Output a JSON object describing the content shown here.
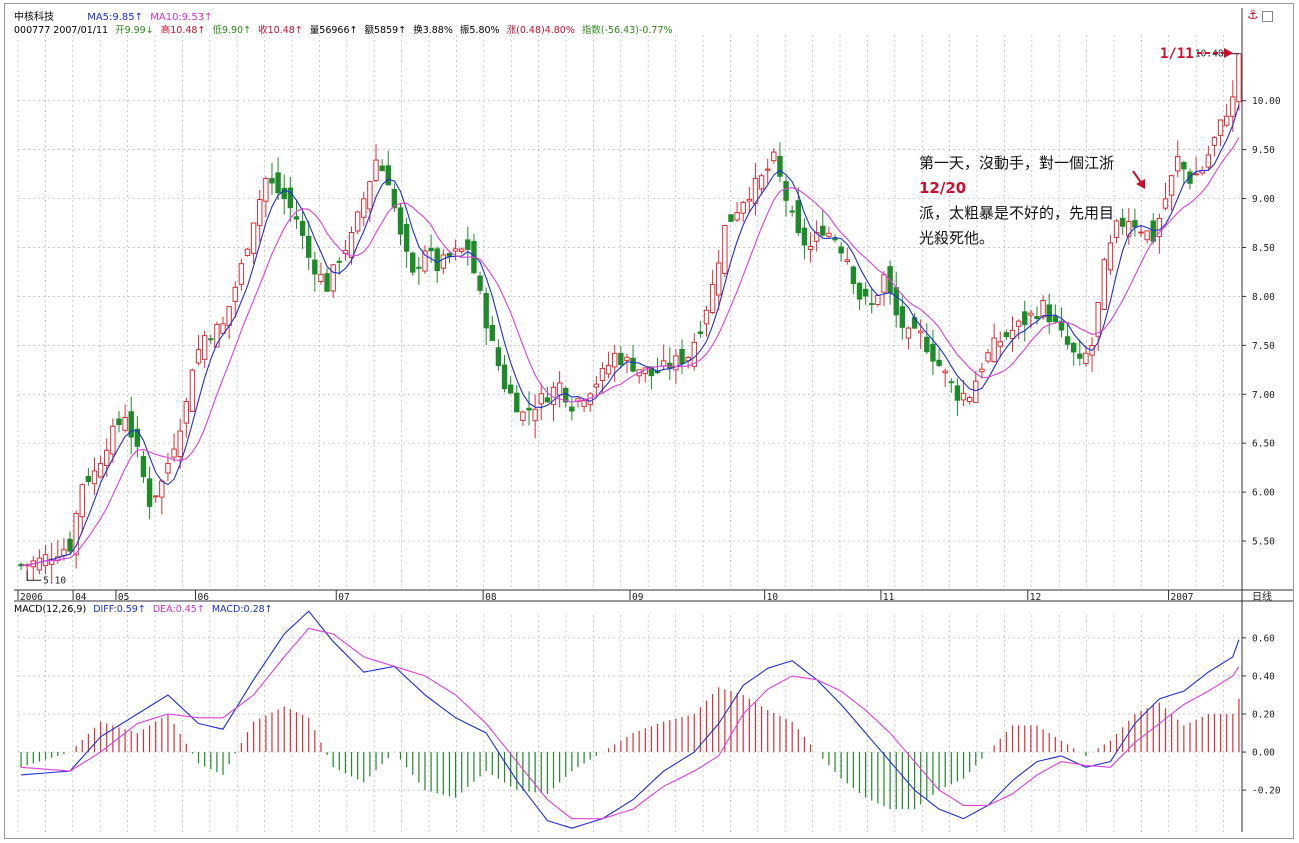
{
  "header": {
    "stock_name": "中核科技",
    "ma5": "MA5:9.85↑",
    "ma10": "MA10:9.53↑",
    "code_date": "000777 2007/01/11",
    "open": "开9.99↓",
    "high": "高10.48↑",
    "low": "低9.90↑",
    "close": "收10.48↑",
    "volume": "量56966↑",
    "amount": "额5859↑",
    "turnover": "换3.88%",
    "amplitude": "振5.80%",
    "change": "涨(0.48)4.80%",
    "index": "指数(-56.43)-0.77%",
    "period": "日线"
  },
  "macd_header": {
    "label": "MACD(12,26,9)",
    "diff": "DIFF:0.59↑",
    "dea": "DEA:0.45↑",
    "macd": "MACD:0.28↑"
  },
  "annotation": {
    "line1": "第一天，沒動手，對一個江浙",
    "line1_date": "12/20",
    "line2": "派，太粗暴是不好的，先用目",
    "line3": "光殺死他。",
    "date_1_11": "1/11",
    "high_label": "10.48",
    "low_label": "5.10"
  },
  "colors": {
    "up": "#d9303a",
    "down": "#1f8a2a",
    "ma5": "#1e2ed6",
    "ma10": "#e03fe0",
    "grid": "#b8b8b8",
    "axis": "#333333"
  },
  "chart_data": [
    {
      "type": "candlestick",
      "title": "中核科技 000777",
      "y_ticks": [
        10.0,
        9.5,
        9.0,
        8.5,
        8.0,
        7.5,
        7.0,
        6.5,
        6.0,
        5.5
      ],
      "y_tick_labels": [
        "10.00",
        "9.50",
        "9.00",
        "8.50",
        "8.00",
        "7.50",
        "7.00",
        "6.50",
        "6.00",
        "5.50"
      ],
      "ylim": [
        5.0,
        10.62
      ],
      "month_labels": [
        {
          "label": "2006",
          "bar": 0
        },
        {
          "label": "04",
          "bar": 9
        },
        {
          "label": "05",
          "bar": 16
        },
        {
          "label": "06",
          "bar": 29
        },
        {
          "label": "07",
          "bar": 52
        },
        {
          "label": "08",
          "bar": 76
        },
        {
          "label": "09",
          "bar": 100
        },
        {
          "label": "10",
          "bar": 122
        },
        {
          "label": "11",
          "bar": 141
        },
        {
          "label": "12",
          "bar": 165
        },
        {
          "label": "2007",
          "bar": 188
        }
      ],
      "anchors": [
        [
          0,
          5.25
        ],
        [
          3,
          5.3
        ],
        [
          6,
          5.4
        ],
        [
          8,
          5.45
        ],
        [
          10,
          6.1
        ],
        [
          12,
          6.2
        ],
        [
          14,
          6.5
        ],
        [
          17,
          6.8
        ],
        [
          19,
          6.4
        ],
        [
          21,
          5.9
        ],
        [
          23,
          6.1
        ],
        [
          25,
          6.5
        ],
        [
          27,
          6.9
        ],
        [
          28,
          7.3
        ],
        [
          30,
          7.6
        ],
        [
          33,
          7.7
        ],
        [
          36,
          8.3
        ],
        [
          38,
          8.8
        ],
        [
          40,
          9.2
        ],
        [
          43,
          9.0
        ],
        [
          45,
          8.8
        ],
        [
          47,
          8.4
        ],
        [
          50,
          8.1
        ],
        [
          52,
          8.4
        ],
        [
          54,
          8.6
        ],
        [
          56,
          9.0
        ],
        [
          58,
          9.4
        ],
        [
          60,
          9.2
        ],
        [
          62,
          8.6
        ],
        [
          64,
          8.2
        ],
        [
          66,
          8.5
        ],
        [
          68,
          8.3
        ],
        [
          70,
          8.4
        ],
        [
          73,
          8.5
        ],
        [
          75,
          8.0
        ],
        [
          77,
          7.5
        ],
        [
          79,
          7.1
        ],
        [
          82,
          6.8
        ],
        [
          84,
          6.9
        ],
        [
          86,
          7.0
        ],
        [
          88,
          7.1
        ],
        [
          90,
          6.9
        ],
        [
          92,
          7.0
        ],
        [
          95,
          7.2
        ],
        [
          97,
          7.4
        ],
        [
          100,
          7.3
        ],
        [
          103,
          7.2
        ],
        [
          106,
          7.3
        ],
        [
          109,
          7.4
        ],
        [
          111,
          7.7
        ],
        [
          113,
          8.1
        ],
        [
          115,
          8.7
        ],
        [
          118,
          9.0
        ],
        [
          121,
          9.2
        ],
        [
          123,
          9.4
        ],
        [
          125,
          9.0
        ],
        [
          127,
          8.6
        ],
        [
          129,
          8.5
        ],
        [
          131,
          8.7
        ],
        [
          133,
          8.6
        ],
        [
          135,
          8.4
        ],
        [
          137,
          8.0
        ],
        [
          139,
          7.9
        ],
        [
          141,
          8.2
        ],
        [
          143,
          7.8
        ],
        [
          145,
          7.6
        ],
        [
          147,
          7.6
        ],
        [
          149,
          7.4
        ],
        [
          151,
          7.2
        ],
        [
          153,
          7.0
        ],
        [
          155,
          7.0
        ],
        [
          157,
          7.3
        ],
        [
          159,
          7.5
        ],
        [
          161,
          7.6
        ],
        [
          163,
          7.7
        ],
        [
          165,
          7.8
        ],
        [
          167,
          7.9
        ],
        [
          169,
          7.7
        ],
        [
          171,
          7.5
        ],
        [
          173,
          7.3
        ],
        [
          175,
          7.5
        ],
        [
          177,
          8.3
        ],
        [
          179,
          8.7
        ],
        [
          181,
          8.8
        ],
        [
          183,
          8.7
        ],
        [
          185,
          8.6
        ],
        [
          187,
          9.0
        ],
        [
          189,
          9.4
        ],
        [
          191,
          9.2
        ],
        [
          193,
          9.3
        ],
        [
          195,
          9.6
        ],
        [
          197,
          9.9
        ],
        [
          198,
          10.0
        ],
        [
          199,
          10.48
        ]
      ],
      "ma_note": "MA5 / MA10 are moving averages of the close series"
    },
    {
      "type": "macd",
      "y_ticks": [
        0.6,
        0.4,
        0.2,
        0.0,
        -0.2
      ],
      "y_tick_labels": [
        "0.60",
        "0.40",
        "0.20",
        "0.00",
        "-0.20"
      ],
      "ylim": [
        -0.42,
        0.72
      ],
      "diff_anchors": [
        [
          0,
          -0.12
        ],
        [
          8,
          -0.1
        ],
        [
          13,
          0.08
        ],
        [
          19,
          0.2
        ],
        [
          24,
          0.3
        ],
        [
          29,
          0.15
        ],
        [
          33,
          0.12
        ],
        [
          38,
          0.38
        ],
        [
          43,
          0.62
        ],
        [
          47,
          0.74
        ],
        [
          51,
          0.58
        ],
        [
          56,
          0.42
        ],
        [
          61,
          0.45
        ],
        [
          66,
          0.3
        ],
        [
          71,
          0.18
        ],
        [
          76,
          0.1
        ],
        [
          81,
          -0.15
        ],
        [
          86,
          -0.36
        ],
        [
          90,
          -0.4
        ],
        [
          95,
          -0.35
        ],
        [
          100,
          -0.25
        ],
        [
          105,
          -0.1
        ],
        [
          110,
          0.0
        ],
        [
          114,
          0.15
        ],
        [
          118,
          0.35
        ],
        [
          122,
          0.44
        ],
        [
          126,
          0.48
        ],
        [
          130,
          0.38
        ],
        [
          134,
          0.25
        ],
        [
          138,
          0.1
        ],
        [
          142,
          -0.05
        ],
        [
          146,
          -0.2
        ],
        [
          150,
          -0.3
        ],
        [
          154,
          -0.35
        ],
        [
          158,
          -0.28
        ],
        [
          162,
          -0.15
        ],
        [
          166,
          -0.05
        ],
        [
          170,
          -0.02
        ],
        [
          174,
          -0.08
        ],
        [
          178,
          -0.05
        ],
        [
          182,
          0.15
        ],
        [
          186,
          0.28
        ],
        [
          190,
          0.32
        ],
        [
          194,
          0.42
        ],
        [
          198,
          0.5
        ],
        [
          199,
          0.59
        ]
      ],
      "dea_anchors": [
        [
          0,
          -0.08
        ],
        [
          8,
          -0.1
        ],
        [
          13,
          0.0
        ],
        [
          19,
          0.15
        ],
        [
          24,
          0.2
        ],
        [
          29,
          0.18
        ],
        [
          33,
          0.18
        ],
        [
          38,
          0.3
        ],
        [
          43,
          0.5
        ],
        [
          47,
          0.65
        ],
        [
          51,
          0.62
        ],
        [
          56,
          0.5
        ],
        [
          61,
          0.45
        ],
        [
          66,
          0.4
        ],
        [
          71,
          0.3
        ],
        [
          76,
          0.15
        ],
        [
          81,
          -0.05
        ],
        [
          86,
          -0.25
        ],
        [
          90,
          -0.35
        ],
        [
          95,
          -0.35
        ],
        [
          100,
          -0.3
        ],
        [
          105,
          -0.18
        ],
        [
          110,
          -0.1
        ],
        [
          114,
          -0.02
        ],
        [
          118,
          0.2
        ],
        [
          122,
          0.33
        ],
        [
          126,
          0.4
        ],
        [
          130,
          0.38
        ],
        [
          134,
          0.32
        ],
        [
          138,
          0.22
        ],
        [
          142,
          0.1
        ],
        [
          146,
          -0.05
        ],
        [
          150,
          -0.2
        ],
        [
          154,
          -0.28
        ],
        [
          158,
          -0.28
        ],
        [
          162,
          -0.22
        ],
        [
          166,
          -0.12
        ],
        [
          170,
          -0.05
        ],
        [
          174,
          -0.07
        ],
        [
          178,
          -0.08
        ],
        [
          182,
          0.05
        ],
        [
          186,
          0.15
        ],
        [
          190,
          0.25
        ],
        [
          194,
          0.32
        ],
        [
          198,
          0.4
        ],
        [
          199,
          0.45
        ]
      ]
    }
  ]
}
